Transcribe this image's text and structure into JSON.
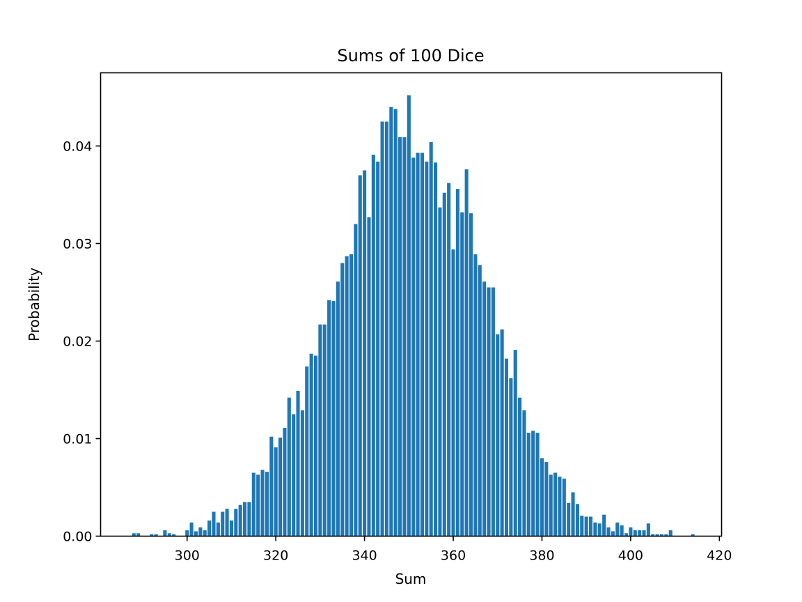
{
  "chart_data": {
    "type": "bar",
    "title": "Sums of 100 Dice",
    "xlabel": "Sum",
    "ylabel": "Probability",
    "xlim": [
      280.5,
      420.5
    ],
    "ylim": [
      0,
      0.0475
    ],
    "xticks": [
      300,
      320,
      340,
      360,
      380,
      400,
      420
    ],
    "xtick_labels": [
      "300",
      "320",
      "340",
      "360",
      "380",
      "400",
      "420"
    ],
    "yticks": [
      0.0,
      0.01,
      0.02,
      0.03,
      0.04
    ],
    "ytick_labels": [
      "0.00",
      "0.01",
      "0.02",
      "0.03",
      "0.04"
    ],
    "grid": false,
    "bar_color": "#1f77b4",
    "x": [
      288,
      289,
      292,
      293,
      295,
      296,
      297,
      300,
      301,
      302,
      303,
      304,
      305,
      306,
      307,
      308,
      309,
      310,
      311,
      312,
      313,
      314,
      315,
      316,
      317,
      318,
      319,
      320,
      321,
      322,
      323,
      324,
      325,
      326,
      327,
      328,
      329,
      330,
      331,
      332,
      333,
      334,
      335,
      336,
      337,
      338,
      339,
      340,
      341,
      342,
      343,
      344,
      345,
      346,
      347,
      348,
      349,
      350,
      351,
      352,
      353,
      354,
      355,
      356,
      357,
      358,
      359,
      360,
      361,
      362,
      363,
      364,
      365,
      366,
      367,
      368,
      369,
      370,
      371,
      372,
      373,
      374,
      375,
      376,
      377,
      378,
      379,
      380,
      381,
      382,
      383,
      384,
      385,
      386,
      387,
      388,
      389,
      390,
      391,
      392,
      393,
      394,
      395,
      396,
      397,
      398,
      399,
      400,
      401,
      402,
      403,
      404,
      405,
      406,
      407,
      408,
      409,
      414
    ],
    "values": [
      0.0003,
      0.0003,
      0.0002,
      0.0002,
      0.0006,
      0.0003,
      0.0002,
      0.0006,
      0.0014,
      0.0005,
      0.0009,
      0.0006,
      0.0016,
      0.0025,
      0.0014,
      0.0025,
      0.0028,
      0.0016,
      0.0028,
      0.0032,
      0.0035,
      0.0035,
      0.0065,
      0.0063,
      0.0068,
      0.0066,
      0.0102,
      0.0091,
      0.0101,
      0.0111,
      0.0142,
      0.0125,
      0.0149,
      0.0129,
      0.0174,
      0.0187,
      0.0185,
      0.0217,
      0.0217,
      0.0242,
      0.0241,
      0.0261,
      0.028,
      0.0287,
      0.0289,
      0.032,
      0.037,
      0.0375,
      0.0327,
      0.0391,
      0.0384,
      0.0425,
      0.0425,
      0.044,
      0.0438,
      0.0409,
      0.0409,
      0.0452,
      0.0388,
      0.0393,
      0.0393,
      0.0384,
      0.0404,
      0.0383,
      0.0337,
      0.0352,
      0.0362,
      0.0294,
      0.0356,
      0.0332,
      0.0376,
      0.0331,
      0.0289,
      0.0278,
      0.0261,
      0.0255,
      0.0255,
      0.0207,
      0.0212,
      0.0182,
      0.0162,
      0.0191,
      0.0142,
      0.0129,
      0.0106,
      0.0108,
      0.0106,
      0.008,
      0.0076,
      0.0063,
      0.0065,
      0.0061,
      0.0059,
      0.0034,
      0.0045,
      0.0033,
      0.0021,
      0.002,
      0.002,
      0.0014,
      0.0013,
      0.0022,
      0.0009,
      0.0005,
      0.0014,
      0.0011,
      0.0003,
      0.0009,
      0.0006,
      0.0006,
      0.0006,
      0.0013,
      0.0002,
      0.0002,
      0.0002,
      0.0002,
      0.0006,
      0.0002
    ]
  }
}
